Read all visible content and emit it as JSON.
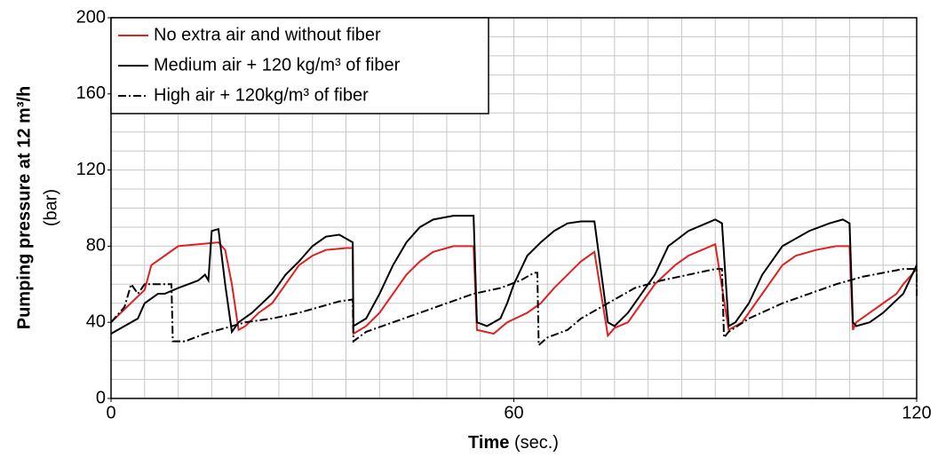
{
  "chart_data": {
    "type": "line",
    "ylabel": "Pumping pressure at 12 m³/h",
    "ylabel_unit": "(bar)",
    "xlabel": "Time",
    "xlabel_unit": "(sec.)",
    "xlim": [
      0,
      120
    ],
    "xticks": [
      0,
      60,
      120
    ],
    "ylim": [
      0,
      200
    ],
    "yticks": [
      0,
      40,
      80,
      120,
      160,
      200
    ],
    "xgrid": [
      0,
      5,
      10,
      15,
      20,
      25,
      30,
      35,
      40,
      45,
      50,
      55,
      60,
      65,
      70,
      75,
      80,
      85,
      90,
      95,
      100,
      105,
      110,
      115,
      120
    ],
    "ygrid": [
      0,
      10,
      20,
      30,
      40,
      50,
      60,
      70,
      80,
      90,
      100,
      110,
      120,
      130,
      140,
      150,
      160,
      170,
      180,
      190,
      200
    ],
    "grid": true,
    "legend": "upper left",
    "series": [
      {
        "name": "No extra air and without fiber",
        "color": "#e02020",
        "dash": "solid",
        "x": [
          0,
          5,
          6,
          8,
          10,
          13,
          16,
          17,
          18,
          19,
          20,
          22,
          24,
          26,
          28,
          30,
          32,
          35,
          36,
          36.1,
          38,
          40,
          42,
          44,
          46,
          48,
          51,
          54,
          54.5,
          57,
          59,
          62,
          64,
          66,
          68,
          70,
          72,
          74,
          75,
          77,
          79,
          81,
          84,
          86,
          88,
          90,
          92,
          94,
          96,
          98,
          100,
          102,
          105,
          108,
          110,
          110.5,
          111,
          113,
          115,
          117,
          118,
          120
        ],
        "values": [
          40,
          57,
          70,
          75,
          80,
          81,
          82,
          78,
          60,
          36,
          38,
          45,
          50,
          60,
          70,
          75,
          78,
          79,
          79,
          34,
          38,
          45,
          55,
          65,
          72,
          77,
          80,
          80,
          36,
          34,
          40,
          45,
          50,
          58,
          65,
          72,
          77,
          33,
          37,
          40,
          50,
          60,
          70,
          75,
          78,
          81,
          36,
          40,
          50,
          60,
          70,
          75,
          78,
          80,
          80,
          36,
          40,
          45,
          50,
          55,
          60,
          68
        ]
      },
      {
        "name": "Medium air + 120 kg/m³ of fiber",
        "color": "#000000",
        "dash": "solid",
        "x": [
          0,
          2,
          4,
          5,
          7,
          8,
          10,
          13,
          14,
          14.5,
          15,
          16,
          17,
          18,
          19,
          21,
          24,
          26,
          28,
          30,
          32,
          34,
          36,
          36.1,
          38,
          40,
          42,
          44,
          46,
          48,
          51,
          54,
          54.5,
          56,
          58,
          59,
          60,
          62,
          64,
          66,
          68,
          70,
          72,
          74,
          75,
          77,
          79,
          81,
          83,
          86,
          88,
          90,
          91,
          92,
          93,
          95,
          97,
          100,
          104,
          107,
          109,
          110,
          110.5,
          111,
          113,
          115,
          118,
          120
        ],
        "values": [
          34,
          38,
          42,
          50,
          55,
          55,
          58,
          62,
          65,
          62,
          88,
          89,
          60,
          35,
          40,
          45,
          55,
          65,
          72,
          80,
          85,
          86,
          82,
          38,
          42,
          55,
          70,
          82,
          90,
          94,
          96,
          96,
          40,
          38,
          42,
          50,
          60,
          75,
          82,
          88,
          92,
          93,
          93,
          40,
          38,
          45,
          55,
          65,
          80,
          88,
          91,
          94,
          92,
          38,
          40,
          50,
          65,
          80,
          88,
          92,
          94,
          92,
          40,
          38,
          40,
          45,
          55,
          70
        ]
      },
      {
        "name": "High air + 120kg/m³ of fiber",
        "color": "#000000",
        "dash": "dashdot",
        "x": [
          0,
          2,
          3,
          4,
          5,
          9,
          9.2,
          11,
          14,
          17,
          20,
          24,
          28,
          31,
          34,
          36,
          36.1,
          38,
          42,
          46,
          50,
          54,
          58,
          61,
          63,
          63.5,
          63.7,
          65,
          68,
          70,
          74,
          78,
          82,
          86,
          90,
          91,
          91.3,
          92,
          95,
          100,
          104,
          108,
          112,
          115,
          118,
          120,
          120
        ],
        "values": [
          40,
          48,
          60,
          55,
          60,
          60,
          30,
          30,
          34,
          37,
          40,
          42,
          45,
          48,
          51,
          52,
          30,
          35,
          40,
          45,
          50,
          55,
          58,
          62,
          66,
          66,
          28,
          32,
          36,
          42,
          50,
          58,
          62,
          65,
          68,
          68,
          32,
          35,
          42,
          50,
          55,
          60,
          64,
          66,
          68,
          68,
          54
        ]
      }
    ]
  }
}
